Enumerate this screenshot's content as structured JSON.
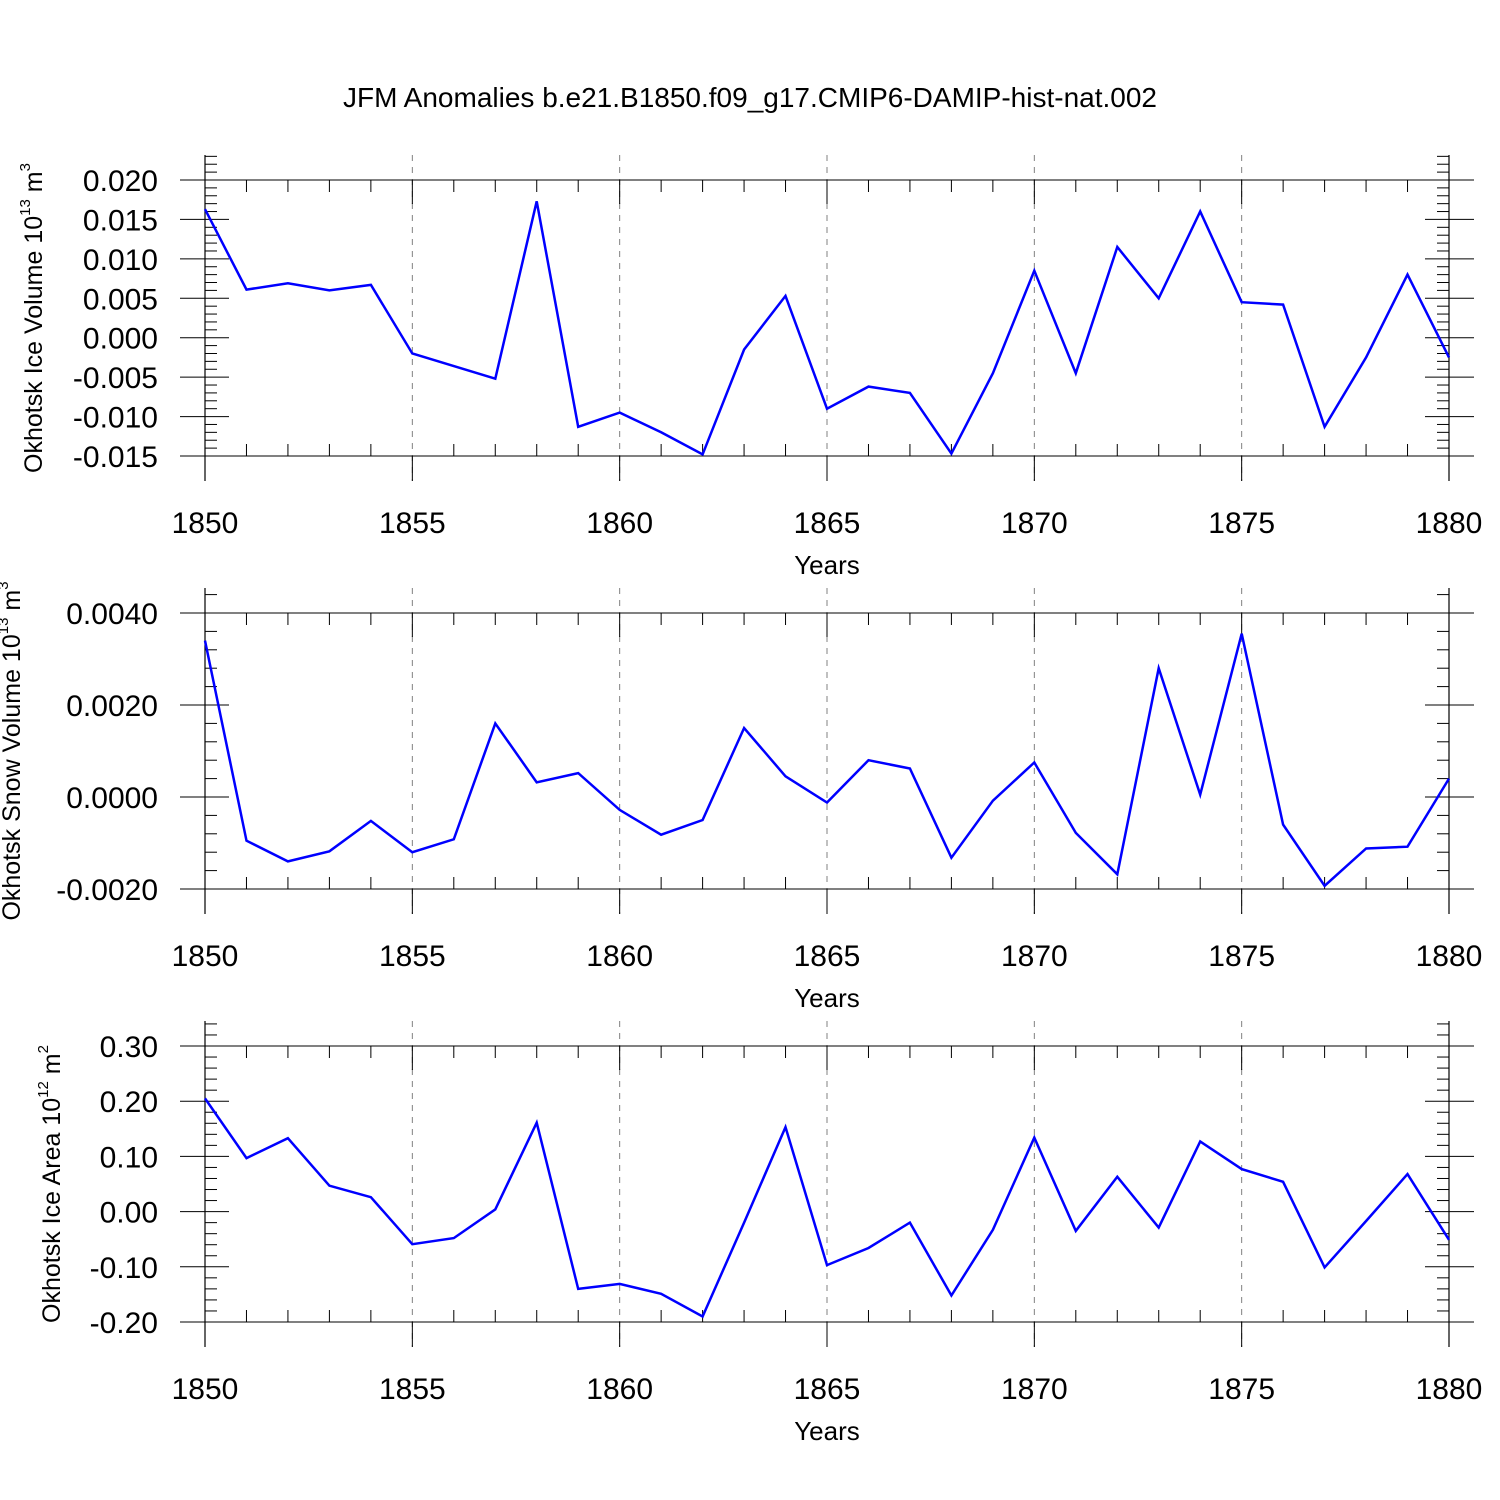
{
  "title": "JFM Anomalies b.e21.B1850.f09_g17.CMIP6-DAMIP-hist-nat.002",
  "colors": {
    "series": "#0000ff",
    "axis": "#000000",
    "grid": "#808080"
  },
  "chart_data": [
    {
      "type": "line",
      "title": "JFM Anomalies b.e21.B1850.f09_g17.CMIP6-DAMIP-hist-nat.002",
      "xlabel": "Years",
      "ylabel_main": "Okhotsk Ice Volume 10",
      "ylabel_exp": "13",
      "ylabel_unit": " m",
      "ylabel_unit_exp": "3",
      "xlim": [
        1850,
        1880
      ],
      "ylim": [
        -0.015,
        0.0205
      ],
      "yticks": [
        -0.015,
        -0.01,
        -0.005,
        0.0,
        0.005,
        0.01,
        0.015,
        0.02
      ],
      "ytick_labels": [
        "-0.015",
        "-0.010",
        "-0.005",
        "0.000",
        "0.005",
        "0.010",
        "0.015",
        "0.020"
      ],
      "xticks": [
        1850,
        1855,
        1860,
        1865,
        1870,
        1875,
        1880
      ],
      "xtick_labels": [
        "1850",
        "1855",
        "1860",
        "1865",
        "1870",
        "1875",
        "1880"
      ],
      "grid": "dashed vertical at major x ticks",
      "x": [
        1850,
        1851,
        1852,
        1853,
        1854,
        1855,
        1856,
        1857,
        1858,
        1859,
        1860,
        1861,
        1862,
        1863,
        1864,
        1865,
        1866,
        1867,
        1868,
        1869,
        1870,
        1871,
        1872,
        1873,
        1874,
        1875,
        1876,
        1877,
        1878,
        1879,
        1880
      ],
      "y": [
        0.0163,
        0.0061,
        0.0069,
        0.006,
        0.0067,
        -0.002,
        -0.0036,
        -0.0052,
        0.0173,
        -0.0113,
        -0.0095,
        -0.012,
        -0.0148,
        -0.0015,
        0.0053,
        -0.009,
        -0.0062,
        -0.007,
        -0.0147,
        -0.0045,
        0.0085,
        -0.0045,
        0.0115,
        0.005,
        0.016,
        0.0045,
        0.0042,
        -0.0113,
        -0.0025,
        0.008,
        -0.0025
      ]
    },
    {
      "type": "line",
      "xlabel": "Years",
      "ylabel_main": "Okhotsk Snow Volume 10",
      "ylabel_exp": "13",
      "ylabel_unit": " m",
      "ylabel_unit_exp": "3",
      "xlim": [
        1850,
        1880
      ],
      "ylim": [
        -0.002,
        0.004
      ],
      "yticks": [
        -0.002,
        0.0,
        0.002,
        0.004
      ],
      "ytick_labels": [
        "-0.0020",
        "0.0000",
        "0.0020",
        "0.0040"
      ],
      "xticks": [
        1850,
        1855,
        1860,
        1865,
        1870,
        1875,
        1880
      ],
      "xtick_labels": [
        "1850",
        "1855",
        "1860",
        "1865",
        "1870",
        "1875",
        "1880"
      ],
      "grid": "dashed vertical at major x ticks",
      "x": [
        1850,
        1851,
        1852,
        1853,
        1854,
        1855,
        1856,
        1857,
        1858,
        1859,
        1860,
        1861,
        1862,
        1863,
        1864,
        1865,
        1866,
        1867,
        1868,
        1869,
        1870,
        1871,
        1872,
        1873,
        1874,
        1875,
        1876,
        1877,
        1878,
        1879,
        1880
      ],
      "y": [
        0.0034,
        -0.00095,
        -0.0014,
        -0.00118,
        -0.00052,
        -0.0012,
        -0.00092,
        0.0016,
        0.00032,
        0.00052,
        -0.00028,
        -0.00082,
        -0.0005,
        0.0015,
        0.00045,
        -0.00012,
        0.0008,
        0.00062,
        -0.00132,
        -8e-05,
        0.00075,
        -0.00078,
        -0.00168,
        0.0028,
        5e-05,
        0.00355,
        -0.0006,
        -0.00193,
        -0.00112,
        -0.00108,
        0.0004
      ]
    },
    {
      "type": "line",
      "xlabel": "Years",
      "ylabel_main": "Okhotsk Ice Area 10",
      "ylabel_exp": "12",
      "ylabel_unit": " m",
      "ylabel_unit_exp": "2",
      "xlim": [
        1850,
        1880
      ],
      "ylim": [
        -0.2,
        0.3
      ],
      "yticks": [
        -0.2,
        -0.1,
        0.0,
        0.1,
        0.2,
        0.3
      ],
      "ytick_labels": [
        "-0.20",
        "-0.10",
        "0.00",
        "0.10",
        "0.20",
        "0.30"
      ],
      "xticks": [
        1850,
        1855,
        1860,
        1865,
        1870,
        1875,
        1880
      ],
      "xtick_labels": [
        "1850",
        "1855",
        "1860",
        "1865",
        "1870",
        "1875",
        "1880"
      ],
      "grid": "dashed vertical at major x ticks",
      "x": [
        1850,
        1851,
        1852,
        1853,
        1854,
        1855,
        1856,
        1857,
        1858,
        1859,
        1860,
        1861,
        1862,
        1863,
        1864,
        1865,
        1866,
        1867,
        1868,
        1869,
        1870,
        1871,
        1872,
        1873,
        1874,
        1875,
        1876,
        1877,
        1878,
        1879,
        1880
      ],
      "y": [
        0.205,
        0.097,
        0.133,
        0.047,
        0.026,
        -0.059,
        -0.048,
        0.004,
        0.161,
        -0.14,
        -0.131,
        -0.149,
        -0.19,
        -0.02,
        0.153,
        -0.097,
        -0.066,
        -0.02,
        -0.152,
        -0.033,
        0.134,
        -0.035,
        0.063,
        -0.029,
        0.127,
        0.077,
        0.054,
        -0.101,
        -0.017,
        0.068,
        -0.051
      ]
    }
  ]
}
